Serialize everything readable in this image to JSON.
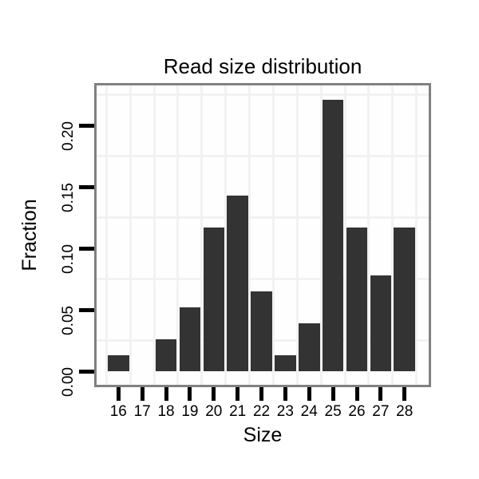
{
  "chart_data": {
    "type": "bar",
    "title": "Read size distribution",
    "xlabel": "Size",
    "ylabel": "Fraction",
    "categories": [
      "16",
      "17",
      "18",
      "19",
      "20",
      "21",
      "22",
      "23",
      "24",
      "25",
      "26",
      "27",
      "28"
    ],
    "values": [
      0.013,
      0,
      0.026,
      0.0519,
      0.1169,
      0.1429,
      0.0649,
      0.013,
      0.039,
      0.2208,
      0.1169,
      0.0779,
      0.1169
    ],
    "yticks": [
      "0.00",
      "0.05",
      "0.10",
      "0.15",
      "0.20"
    ],
    "ytick_values": [
      0.0,
      0.05,
      0.1,
      0.15,
      0.2
    ],
    "ylim": [
      -0.012,
      0.233
    ],
    "grid": {
      "minor_horizontal_values": [
        0.025,
        0.075,
        0.125,
        0.175,
        0.225
      ],
      "vertical_at_category_boundaries": true
    },
    "legend": "none",
    "colors": {
      "bar": "#333333",
      "panel_border": "#818181",
      "gridline": "#f2f2f2",
      "tick": "#000000",
      "text": "#000000",
      "panel_background": "#fefefe"
    }
  }
}
